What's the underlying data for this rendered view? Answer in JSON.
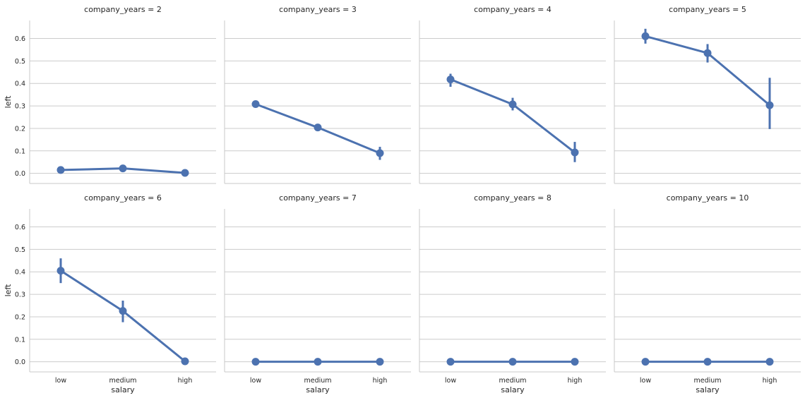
{
  "chart_data": {
    "type": "line",
    "kind": "facet point plot with error bars",
    "facet_variable": "company_years",
    "x_label": "salary",
    "y_label": "left",
    "categories": [
      "low",
      "medium",
      "high"
    ],
    "y_ticks": [
      "0.0",
      "0.1",
      "0.2",
      "0.3",
      "0.4",
      "0.5",
      "0.6"
    ],
    "ylim": [
      -0.045,
      0.68
    ],
    "grid": "horizontal",
    "color": "#4c72b0",
    "panels": [
      {
        "title": "company_years = 2",
        "values": [
          0.015,
          0.022,
          0.002
        ],
        "ci": [
          [
            0.011,
            0.019
          ],
          [
            0.017,
            0.027
          ],
          [
            0.0,
            0.005
          ]
        ]
      },
      {
        "title": "company_years = 3",
        "values": [
          0.308,
          0.204,
          0.09
        ],
        "ci": [
          [
            0.294,
            0.322
          ],
          [
            0.19,
            0.218
          ],
          [
            0.06,
            0.118
          ]
        ]
      },
      {
        "title": "company_years = 4",
        "values": [
          0.418,
          0.307,
          0.093
        ],
        "ci": [
          [
            0.385,
            0.443
          ],
          [
            0.28,
            0.336
          ],
          [
            0.05,
            0.14
          ]
        ]
      },
      {
        "title": "company_years = 5",
        "values": [
          0.61,
          0.535,
          0.303
        ],
        "ci": [
          [
            0.577,
            0.643
          ],
          [
            0.493,
            0.575
          ],
          [
            0.197,
            0.425
          ]
        ]
      },
      {
        "title": "company_years = 6",
        "values": [
          0.405,
          0.226,
          0.002
        ],
        "ci": [
          [
            0.35,
            0.46
          ],
          [
            0.176,
            0.272
          ],
          [
            0.0,
            0.005
          ]
        ]
      },
      {
        "title": "company_years = 7",
        "values": [
          0.0,
          0.0,
          0.0
        ],
        "ci": [
          [
            0.0,
            0.0
          ],
          [
            0.0,
            0.0
          ],
          [
            0.0,
            0.0
          ]
        ]
      },
      {
        "title": "company_years = 8",
        "values": [
          0.0,
          0.0,
          0.0
        ],
        "ci": [
          [
            0.0,
            0.0
          ],
          [
            0.0,
            0.0
          ],
          [
            0.0,
            0.0
          ]
        ]
      },
      {
        "title": "company_years = 10",
        "values": [
          0.0,
          0.0,
          0.0
        ],
        "ci": [
          [
            0.0,
            0.0
          ],
          [
            0.0,
            0.0
          ],
          [
            0.0,
            0.0
          ]
        ]
      }
    ]
  }
}
